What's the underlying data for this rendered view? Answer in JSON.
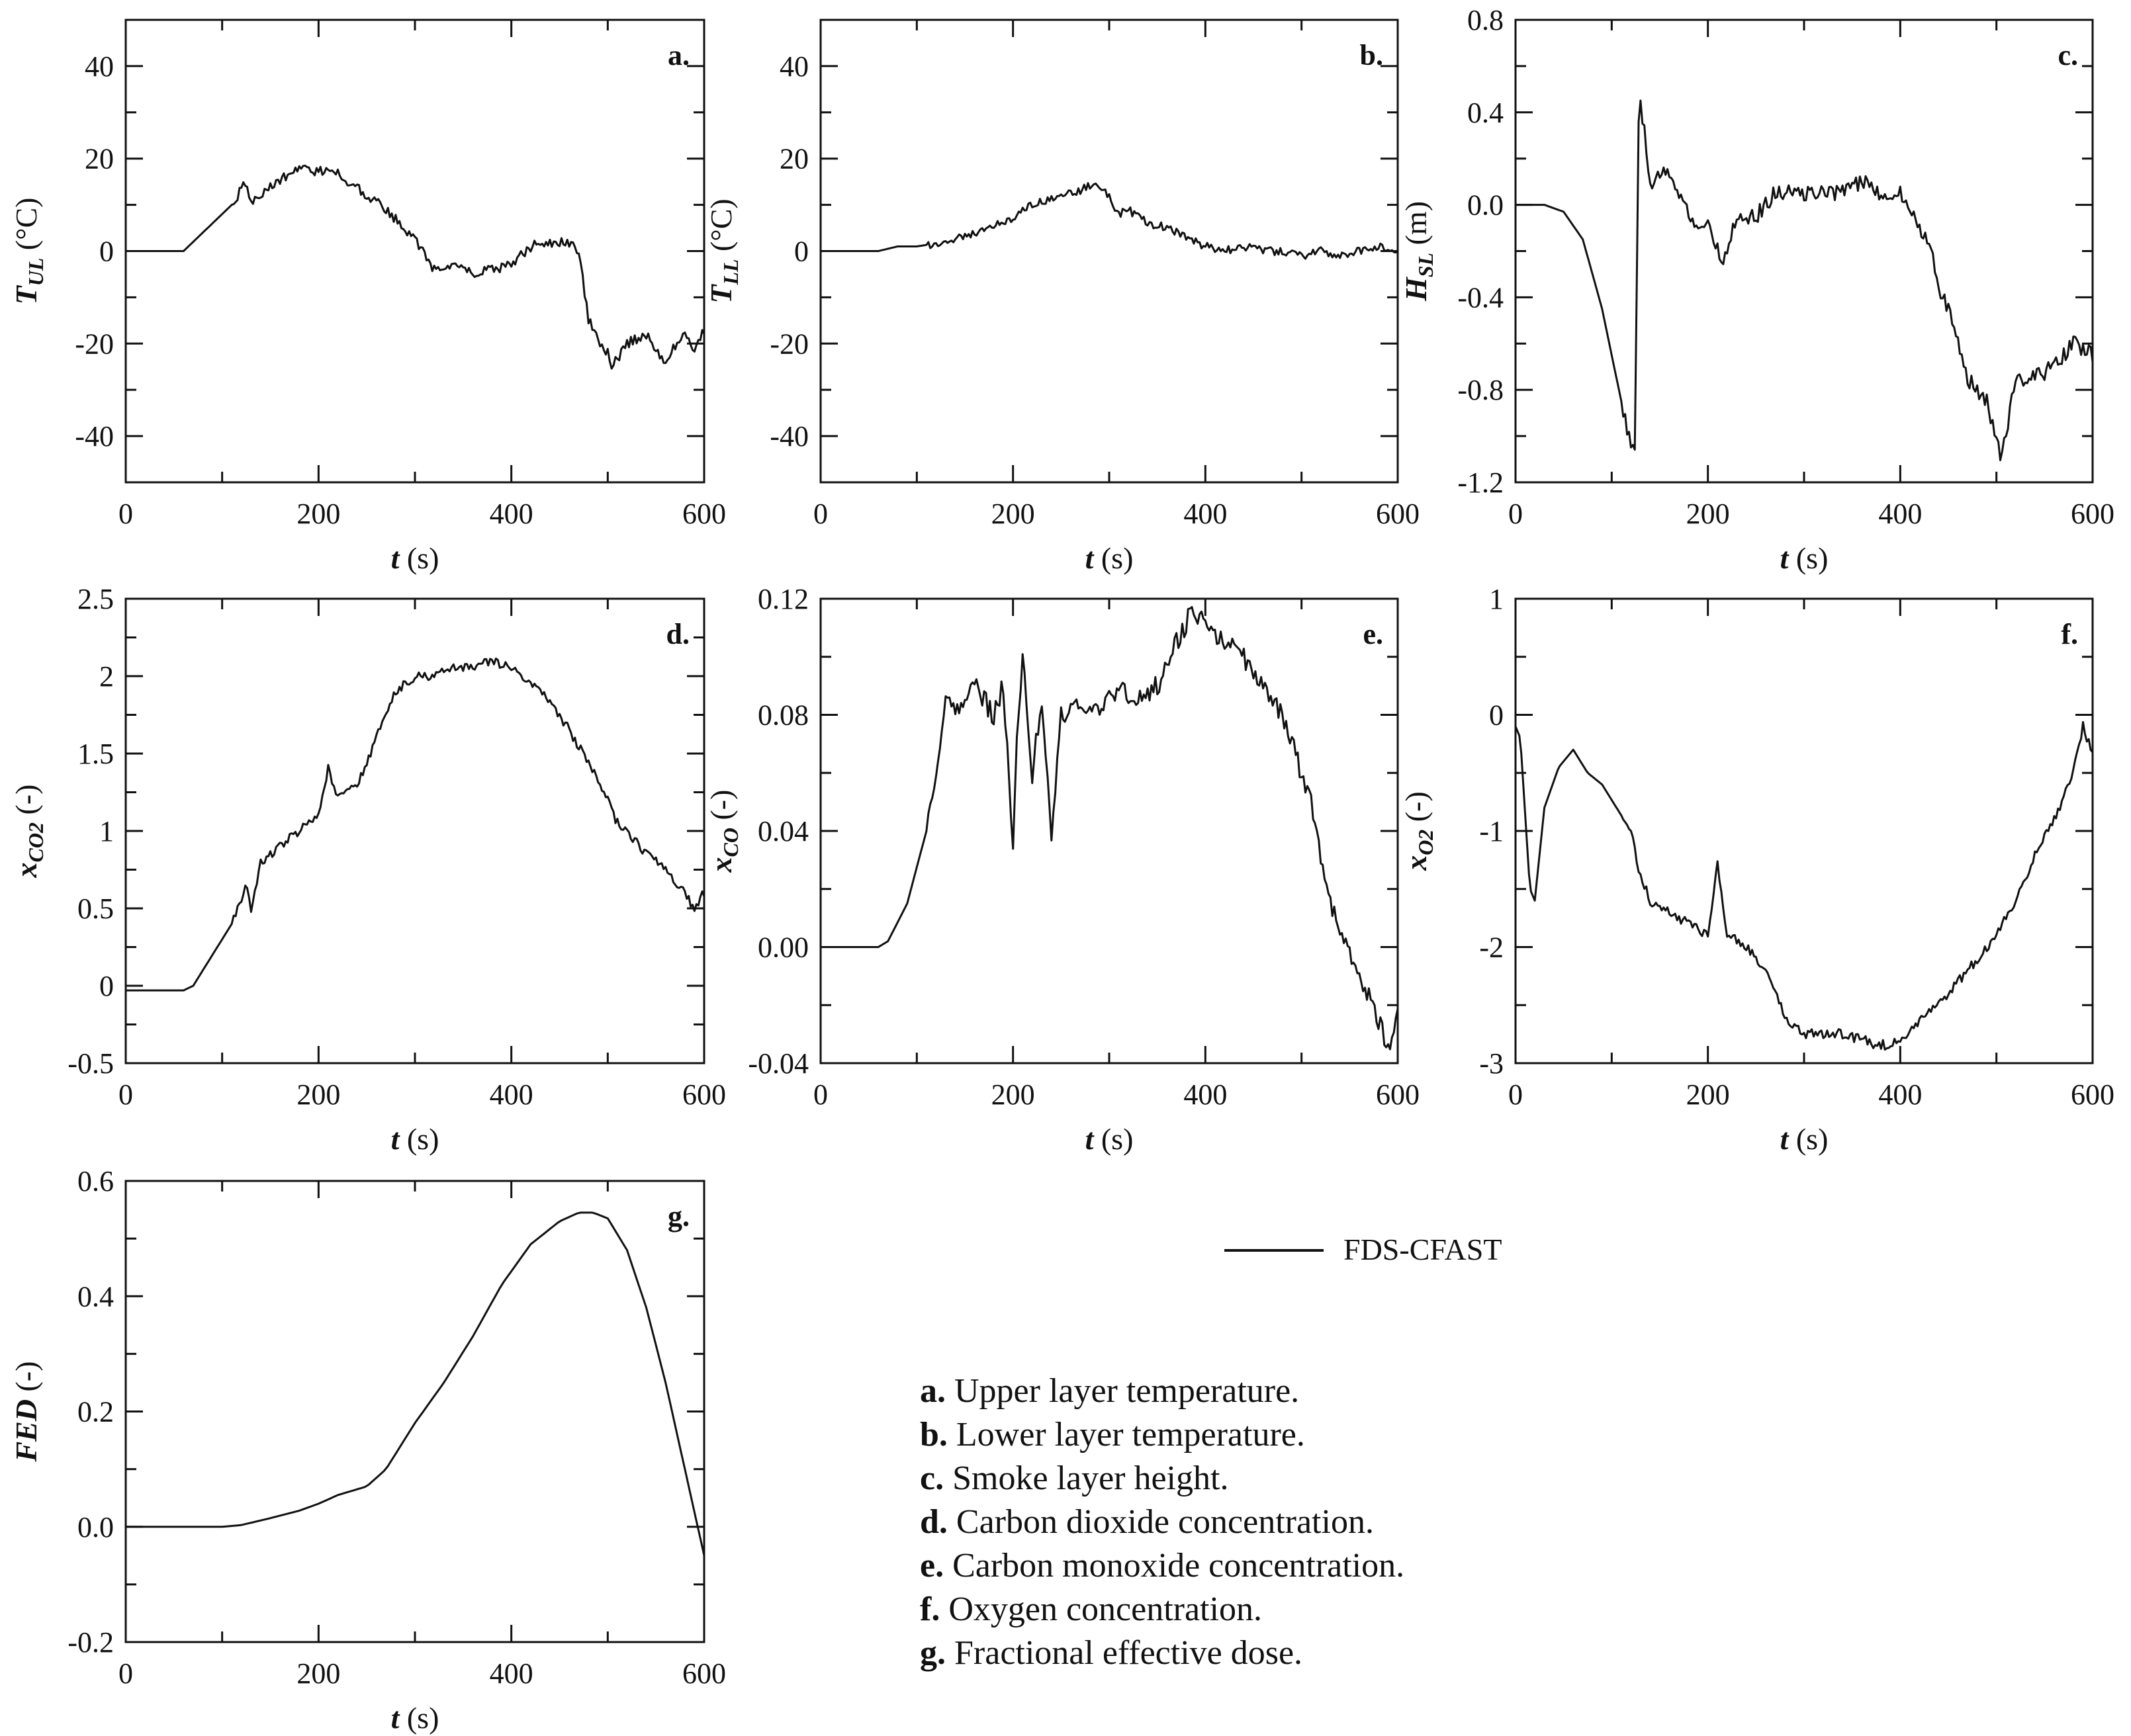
{
  "chart_data": [
    {
      "id": "a",
      "type": "line",
      "panel_label": "a.",
      "ylabel": {
        "main": "T",
        "sub": "UL",
        "unit": " (°C)"
      },
      "xlabel": "t",
      "xunit": " (s)",
      "xlim": [
        0,
        600
      ],
      "ylim": [
        -50,
        50
      ],
      "yticks": [
        -40,
        -20,
        0,
        20,
        40
      ],
      "yticklabels": [
        "-40",
        "-20",
        "0",
        "20",
        "40"
      ],
      "xticks": [
        0,
        200,
        400,
        600
      ],
      "xticklabels": [
        "0",
        "200",
        "400",
        "600"
      ],
      "series": [
        {
          "name": "FDS-CFAST",
          "x": [
            0,
            60,
            70,
            90,
            110,
            125,
            130,
            150,
            180,
            200,
            215,
            230,
            250,
            270,
            290,
            305,
            320,
            340,
            360,
            380,
            400,
            420,
            440,
            460,
            470,
            480,
            490,
            500,
            505,
            520,
            540,
            560,
            580,
            590,
            600
          ],
          "y": [
            0,
            0,
            2,
            6,
            10,
            15,
            10,
            14,
            18,
            17,
            18,
            15,
            12,
            9,
            5,
            1,
            -4,
            -3,
            -5,
            -4,
            -3,
            1,
            2,
            2,
            0,
            -15,
            -19,
            -22,
            -25,
            -20,
            -18,
            -24,
            -17,
            -22,
            -17
          ]
        }
      ]
    },
    {
      "id": "b",
      "type": "line",
      "panel_label": "b.",
      "ylabel": {
        "main": "T",
        "sub": "LL",
        "unit": " (°C)"
      },
      "xlabel": "t",
      "xunit": " (s)",
      "xlim": [
        0,
        600
      ],
      "ylim": [
        -50,
        50
      ],
      "yticks": [
        -40,
        -20,
        0,
        20,
        40
      ],
      "yticklabels": [
        "-40",
        "-20",
        "0",
        "20",
        "40"
      ],
      "xticks": [
        0,
        200,
        400,
        600
      ],
      "xticklabels": [
        "0",
        "200",
        "400",
        "600"
      ],
      "series": [
        {
          "name": "FDS-CFAST",
          "x": [
            0,
            60,
            80,
            100,
            130,
            160,
            190,
            220,
            250,
            270,
            285,
            300,
            310,
            320,
            340,
            360,
            380,
            400,
            420,
            440,
            460,
            480,
            500,
            520,
            540,
            560,
            580,
            600
          ],
          "y": [
            0,
            0,
            1,
            1,
            2,
            4,
            6,
            10,
            12,
            13,
            15,
            12,
            8,
            9,
            6,
            5,
            3,
            1,
            0,
            1,
            0,
            0,
            -1,
            0,
            -1,
            0,
            1,
            0
          ]
        }
      ]
    },
    {
      "id": "c",
      "type": "line",
      "panel_label": "c.",
      "ylabel": {
        "main": "H",
        "sub": "SL",
        "unit": " (m)"
      },
      "xlabel": "t",
      "xunit": " (s)",
      "xlim": [
        0,
        600
      ],
      "ylim": [
        -1.2,
        0.8
      ],
      "yticks": [
        -1.2,
        -0.8,
        -0.4,
        0.0,
        0.4,
        0.8
      ],
      "yticklabels": [
        "-1.2",
        "-0.8",
        "-0.4",
        "0.0",
        "0.4",
        "0.8"
      ],
      "xticks": [
        0,
        200,
        400,
        600
      ],
      "xticklabels": [
        "0",
        "200",
        "400",
        "600"
      ],
      "series": [
        {
          "name": "FDS-CFAST",
          "x": [
            0,
            30,
            50,
            70,
            90,
            110,
            120,
            125,
            127,
            130,
            140,
            160,
            180,
            200,
            215,
            230,
            250,
            270,
            300,
            330,
            360,
            380,
            400,
            420,
            430,
            440,
            450,
            470,
            490,
            505,
            520,
            540,
            560,
            580,
            600
          ],
          "y": [
            0,
            0,
            -0.03,
            -0.15,
            -0.45,
            -0.85,
            -1.05,
            -1.1,
            0.3,
            0.45,
            0.1,
            0.15,
            -0.05,
            -0.1,
            -0.25,
            -0.05,
            -0.05,
            0.05,
            0.05,
            0.05,
            0.1,
            0.05,
            0.05,
            -0.1,
            -0.15,
            -0.35,
            -0.45,
            -0.75,
            -0.85,
            -1.1,
            -0.75,
            -0.75,
            -0.7,
            -0.6,
            -0.65
          ]
        }
      ]
    },
    {
      "id": "d",
      "type": "line",
      "panel_label": "d.",
      "ylabel": {
        "main": "x",
        "sub": "CO2",
        "unit": " (-)"
      },
      "xlabel": "t",
      "xunit": " (s)",
      "xlim": [
        0,
        600
      ],
      "ylim": [
        -0.5,
        2.5
      ],
      "yticks": [
        -0.5,
        0,
        0.5,
        1,
        1.5,
        2,
        2.5
      ],
      "yticklabels": [
        "-0.5",
        "0",
        "0.5",
        "1",
        "1.5",
        "2",
        "2.5"
      ],
      "xticks": [
        0,
        200,
        400,
        600
      ],
      "xticklabels": [
        "0",
        "200",
        "400",
        "600"
      ],
      "series": [
        {
          "name": "FDS-CFAST",
          "x": [
            0,
            60,
            70,
            90,
            110,
            125,
            130,
            140,
            160,
            180,
            200,
            210,
            220,
            240,
            260,
            280,
            300,
            320,
            340,
            360,
            380,
            400,
            420,
            440,
            460,
            480,
            500,
            510,
            520,
            540,
            560,
            580,
            590,
            600
          ],
          "y": [
            -0.03,
            -0.03,
            0,
            0.2,
            0.4,
            0.65,
            0.5,
            0.8,
            0.9,
            1.0,
            1.1,
            1.4,
            1.2,
            1.3,
            1.6,
            1.9,
            2.0,
            2.0,
            2.05,
            2.05,
            2.1,
            2.05,
            1.95,
            1.85,
            1.65,
            1.45,
            1.2,
            1.05,
            1.0,
            0.85,
            0.75,
            0.6,
            0.5,
            0.6
          ]
        }
      ]
    },
    {
      "id": "e",
      "type": "line",
      "panel_label": "e.",
      "ylabel": {
        "main": "x",
        "sub": "CO",
        "unit": " (-)"
      },
      "xlabel": "t",
      "xunit": " (s)",
      "xlim": [
        0,
        600
      ],
      "ylim": [
        -0.04,
        0.12
      ],
      "yticks": [
        -0.04,
        0.0,
        0.04,
        0.08,
        0.12
      ],
      "yticklabels": [
        "-0.04",
        "0.00",
        "0.04",
        "0.08",
        "0.12"
      ],
      "xticks": [
        0,
        200,
        400,
        600
      ],
      "xticklabels": [
        "0",
        "200",
        "400",
        "600"
      ],
      "series": [
        {
          "name": "FDS-CFAST",
          "x": [
            0,
            60,
            70,
            90,
            110,
            125,
            130,
            140,
            160,
            180,
            190,
            200,
            205,
            210,
            220,
            230,
            240,
            250,
            270,
            290,
            310,
            330,
            350,
            370,
            385,
            400,
            420,
            440,
            460,
            480,
            500,
            510,
            520,
            530,
            540,
            560,
            580,
            590,
            600
          ],
          "y": [
            0,
            0,
            0.002,
            0.015,
            0.04,
            0.07,
            0.09,
            0.08,
            0.09,
            0.08,
            0.09,
            0.035,
            0.08,
            0.1,
            0.06,
            0.085,
            0.04,
            0.08,
            0.085,
            0.08,
            0.09,
            0.085,
            0.09,
            0.105,
            0.115,
            0.112,
            0.105,
            0.1,
            0.09,
            0.08,
            0.06,
            0.05,
            0.03,
            0.015,
            0.005,
            -0.01,
            -0.025,
            -0.035,
            -0.02
          ]
        }
      ]
    },
    {
      "id": "f",
      "type": "line",
      "panel_label": "f.",
      "ylabel": {
        "main": "x",
        "sub": "O2",
        "unit": " (-)"
      },
      "xlabel": "t",
      "xunit": " (s)",
      "xlim": [
        0,
        600
      ],
      "ylim": [
        -3,
        1
      ],
      "yticks": [
        -3,
        -2,
        -1,
        0,
        1
      ],
      "yticklabels": [
        "-3",
        "-2",
        "-1",
        "0",
        "1"
      ],
      "xticks": [
        0,
        200,
        400,
        600
      ],
      "xticklabels": [
        "0",
        "200",
        "400",
        "600"
      ],
      "series": [
        {
          "name": "FDS-CFAST",
          "x": [
            0,
            5,
            15,
            20,
            30,
            45,
            60,
            75,
            90,
            105,
            120,
            130,
            140,
            160,
            180,
            200,
            210,
            220,
            240,
            260,
            280,
            300,
            320,
            340,
            360,
            380,
            400,
            420,
            440,
            460,
            480,
            500,
            520,
            540,
            560,
            580,
            590,
            600
          ],
          "y": [
            -0.1,
            -0.2,
            -1.5,
            -1.6,
            -0.8,
            -0.45,
            -0.3,
            -0.5,
            -0.6,
            -0.8,
            -1.0,
            -1.4,
            -1.6,
            -1.7,
            -1.8,
            -1.9,
            -1.3,
            -1.9,
            -2.0,
            -2.2,
            -2.6,
            -2.75,
            -2.75,
            -2.75,
            -2.8,
            -2.85,
            -2.8,
            -2.65,
            -2.5,
            -2.3,
            -2.1,
            -1.9,
            -1.6,
            -1.2,
            -0.9,
            -0.5,
            -0.1,
            -0.35
          ]
        }
      ]
    },
    {
      "id": "g",
      "type": "line",
      "panel_label": "g.",
      "ylabel": {
        "main": "FED",
        "sub": "",
        "unit": " (-)"
      },
      "xlabel": "t",
      "xunit": " (s)",
      "xlim": [
        0,
        600
      ],
      "ylim": [
        -0.2,
        0.6
      ],
      "yticks": [
        -0.2,
        0.0,
        0.2,
        0.4,
        0.6
      ],
      "yticklabels": [
        "-0.2",
        "0.0",
        "0.2",
        "0.4",
        "0.6"
      ],
      "xticks": [
        0,
        200,
        400,
        600
      ],
      "xticklabels": [
        "0",
        "200",
        "400",
        "600"
      ],
      "series": [
        {
          "name": "FDS-CFAST",
          "x": [
            0,
            100,
            120,
            150,
            180,
            200,
            220,
            250,
            270,
            300,
            330,
            360,
            390,
            420,
            450,
            470,
            485,
            500,
            520,
            540,
            560,
            580,
            600
          ],
          "y": [
            0,
            0,
            0.003,
            0.015,
            0.028,
            0.04,
            0.055,
            0.07,
            0.1,
            0.18,
            0.25,
            0.33,
            0.42,
            0.49,
            0.53,
            0.545,
            0.545,
            0.535,
            0.48,
            0.38,
            0.25,
            0.1,
            -0.05
          ]
        }
      ]
    }
  ],
  "legend": {
    "series_name": "FDS-CFAST"
  },
  "caption": [
    {
      "key": "a.",
      "text": " Upper layer temperature."
    },
    {
      "key": "b.",
      "text": " Lower layer temperature."
    },
    {
      "key": "c.",
      "text": " Smoke layer height."
    },
    {
      "key": "d.",
      "text": " Carbon dioxide concentration."
    },
    {
      "key": "e.",
      "text": " Carbon monoxide concentration."
    },
    {
      "key": "f.",
      "text": " Oxygen concentration."
    },
    {
      "key": "g.",
      "text": " Fractional effective dose."
    }
  ],
  "colors": {
    "line": "#111111",
    "axis": "#111111",
    "background": "#ffffff"
  }
}
